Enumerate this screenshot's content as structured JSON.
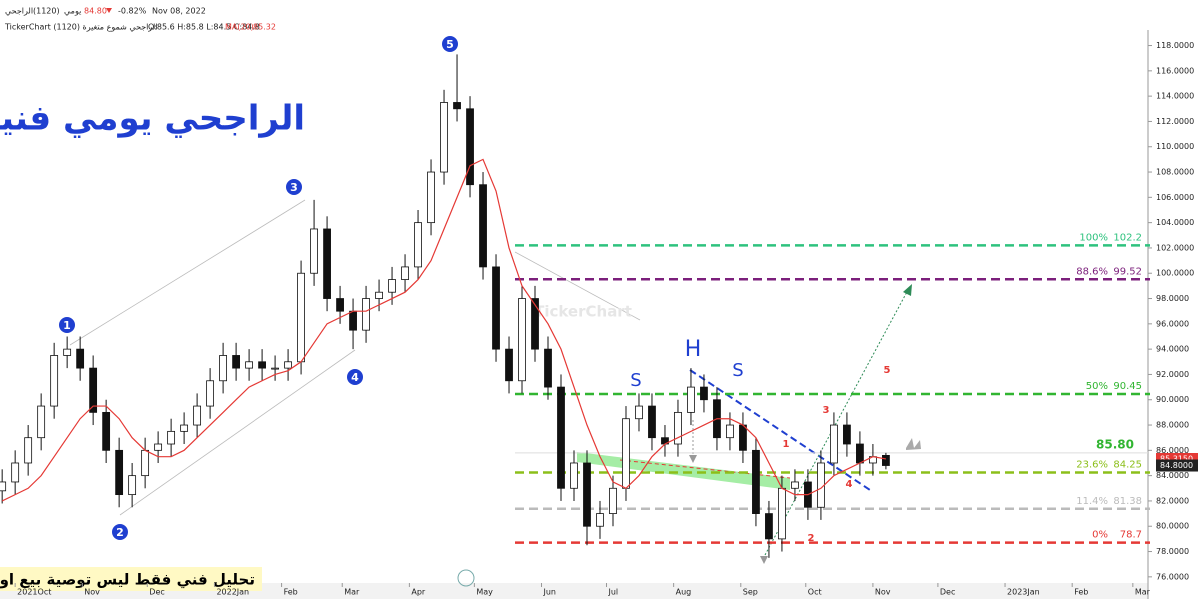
{
  "header": {
    "symbol": "الراجحي",
    "code": "(1120)",
    "period": "يومي",
    "last": "84.80",
    "change": "-0.82%",
    "date": "Nov 08, 2022",
    "source": "TickerChart الراجحي شموع متغيرة (1120)",
    "ohlc": "O:85.6 H:85.8 L:84.5 C:84.8",
    "ma_label": "MA(20)",
    "ma_value": "85.32"
  },
  "chart_data": {
    "type": "candlestick",
    "title": "الراجحي يومي فنياً",
    "disclaimer": "تحليل فني فقط ليس توصية بيع او شراء",
    "watermark": "TickerChart",
    "x": [
      -6,
      0,
      6,
      12,
      18,
      24,
      30,
      36,
      42,
      48,
      54,
      60,
      66,
      72,
      78,
      84,
      90,
      96,
      102,
      108,
      114,
      120,
      126,
      132,
      138,
      144,
      150,
      156,
      162,
      168,
      174,
      180,
      186,
      192,
      198,
      204,
      210,
      216,
      222,
      228,
      234,
      240,
      246,
      252,
      258,
      264,
      270,
      276,
      282,
      288,
      294,
      300,
      306,
      312,
      318,
      324,
      330,
      336,
      342,
      348,
      354,
      360,
      366,
      372,
      378,
      384,
      390,
      396,
      402
    ],
    "open": [
      82.8,
      83.5,
      85,
      87,
      89.5,
      93.5,
      94,
      92.5,
      89,
      86,
      82.5,
      84,
      86,
      86.5,
      87.5,
      88,
      89.5,
      91.5,
      93.5,
      92.5,
      93,
      92.5,
      92.5,
      93,
      100,
      103.5,
      98,
      97,
      95.5,
      98,
      98.5,
      99.5,
      100.5,
      104,
      108,
      113.5,
      113,
      107,
      100.5,
      94,
      91.5,
      98,
      94,
      91,
      83,
      85,
      80,
      81,
      83,
      88.5,
      89.5,
      87,
      86.5,
      89,
      91,
      90,
      87,
      88,
      86,
      81,
      79,
      83,
      83.5,
      81.5,
      85,
      88,
      86.5,
      85,
      85.6
    ],
    "high": [
      84.5,
      86,
      88,
      90.5,
      94.5,
      95,
      95,
      93.5,
      90,
      87,
      85,
      87,
      87.5,
      88.5,
      89,
      90.5,
      92.5,
      94.5,
      94.5,
      94,
      94,
      93.5,
      94,
      101,
      105.8,
      104.5,
      99,
      98,
      99,
      99.5,
      100.5,
      101.5,
      105,
      109,
      114.5,
      117.3,
      114,
      108,
      101.5,
      95,
      99,
      99,
      95,
      92,
      86,
      86,
      82,
      84,
      89.5,
      90.5,
      90.5,
      88,
      90,
      92.5,
      92,
      91,
      89,
      89,
      87,
      82,
      84,
      84.5,
      84.5,
      86,
      89,
      89,
      87.5,
      86.5,
      85.8
    ],
    "low": [
      81.8,
      82.5,
      84,
      86,
      88.5,
      92.5,
      91.5,
      88,
      85,
      81.5,
      81.5,
      83,
      85,
      85.5,
      86.5,
      87,
      88.5,
      90.5,
      91.5,
      91.5,
      91.5,
      91.5,
      91.5,
      92,
      99,
      97,
      96,
      94,
      94.5,
      97,
      97.5,
      98.5,
      99.5,
      103,
      107,
      112,
      106,
      99.5,
      93,
      90.5,
      90.5,
      93,
      90,
      82,
      82,
      78.5,
      79,
      80,
      82,
      87.5,
      86,
      85.5,
      85.5,
      88,
      89,
      86,
      86,
      85,
      80,
      77.5,
      78,
      82,
      80.5,
      80.5,
      84,
      85.5,
      84,
      84,
      84.5
    ],
    "close": [
      83.5,
      85,
      87,
      89.5,
      93.5,
      94,
      92.5,
      89,
      86,
      82.5,
      84,
      86,
      86.5,
      87.5,
      88,
      89.5,
      91.5,
      93.5,
      92.5,
      93,
      92.5,
      92.5,
      93,
      100,
      103.5,
      98,
      97,
      95.5,
      98,
      98.5,
      99.5,
      100.5,
      104,
      108,
      113.5,
      113,
      107,
      100.5,
      94,
      91.5,
      98,
      94,
      91,
      83,
      85,
      80,
      81,
      83,
      88.5,
      89.5,
      87,
      86.5,
      89,
      91,
      90,
      87,
      88,
      86,
      81,
      79,
      83,
      83.5,
      81.5,
      85,
      88,
      86.5,
      85,
      85.5,
      84.8
    ],
    "up_color": "#ffffff",
    "down_color": "#111111",
    "ma": {
      "color": "#e53935",
      "values": [
        82,
        82.5,
        83,
        84,
        85.5,
        87,
        88.5,
        89.5,
        89.5,
        88.5,
        87,
        86,
        85.5,
        85.5,
        86,
        87,
        88,
        89,
        90,
        91,
        91.5,
        92,
        92.3,
        93,
        94.5,
        96,
        96.5,
        97,
        97,
        97.5,
        98,
        98.5,
        99.5,
        101,
        103.5,
        106,
        108.5,
        109,
        106.5,
        102,
        99,
        97.5,
        96,
        94,
        91,
        88,
        85.5,
        83.5,
        83,
        84,
        85.5,
        86.5,
        87,
        87.5,
        88,
        88.5,
        88.5,
        88,
        87,
        85,
        83,
        82.5,
        82.5,
        83,
        84,
        84.5,
        85,
        85.5,
        85.32
      ]
    },
    "xlim": [
      -7,
      523
    ],
    "xticks": [
      {
        "value": 0,
        "label": "2021Oct"
      },
      {
        "value": 31,
        "label": "Nov"
      },
      {
        "value": 61,
        "label": "Dec"
      },
      {
        "value": 92,
        "label": "2022Jan"
      },
      {
        "value": 123,
        "label": "Feb"
      },
      {
        "value": 151,
        "label": "Mar"
      },
      {
        "value": 182,
        "label": "Apr"
      },
      {
        "value": 212,
        "label": "May"
      },
      {
        "value": 243,
        "label": "Jun"
      },
      {
        "value": 273,
        "label": "Jul"
      },
      {
        "value": 304,
        "label": "Aug"
      },
      {
        "value": 335,
        "label": "Sep"
      },
      {
        "value": 365,
        "label": "Oct"
      },
      {
        "value": 396,
        "label": "Nov"
      },
      {
        "value": 426,
        "label": "Dec"
      },
      {
        "value": 457,
        "label": "2023Jan"
      },
      {
        "value": 488,
        "label": "Feb"
      },
      {
        "value": 516,
        "label": "Mar"
      }
    ],
    "ylim": [
      75.75,
      121.6
    ],
    "yticks": [
      {
        "value": 76,
        "label": "76.0000"
      },
      {
        "value": 78,
        "label": "78.0000"
      },
      {
        "value": 80,
        "label": "80.0000"
      },
      {
        "value": 82,
        "label": "82.0000"
      },
      {
        "value": 84,
        "label": "84.0000"
      },
      {
        "value": 86,
        "label": "86.0000"
      },
      {
        "value": 88,
        "label": "88.0000"
      },
      {
        "value": 90,
        "label": "90.0000"
      },
      {
        "value": 92,
        "label": "92.0000"
      },
      {
        "value": 94,
        "label": "94.0000"
      },
      {
        "value": 96,
        "label": "96.0000"
      },
      {
        "value": 98,
        "label": "98.0000"
      },
      {
        "value": 100,
        "label": "100.0000"
      },
      {
        "value": 102,
        "label": "102.0000"
      },
      {
        "value": 104,
        "label": "104.0000"
      },
      {
        "value": 106,
        "label": "106.0000"
      },
      {
        "value": 108,
        "label": "108.0000"
      },
      {
        "value": 110,
        "label": "110.0000"
      },
      {
        "value": 112,
        "label": "112.0000"
      },
      {
        "value": 114,
        "label": "114.0000"
      },
      {
        "value": 116,
        "label": "116.0000"
      },
      {
        "value": 118,
        "label": "118.0000"
      }
    ],
    "fib_levels": [
      {
        "label": "100%",
        "value": 102.2,
        "color": "#2ec27e"
      },
      {
        "label": "88.6%",
        "value": 99.52,
        "color": "#7b1f7b"
      },
      {
        "label": "50%",
        "value": 90.45,
        "color": "#31b531"
      },
      {
        "label": "23.6%",
        "value": 84.25,
        "color": "#8cbf1a"
      },
      {
        "label": "11.4%",
        "value": 81.38,
        "color": "#bbbbbb"
      },
      {
        "label": "0%",
        "value": 78.7,
        "color": "#e53935"
      }
    ],
    "level_marker": {
      "value": 85.8,
      "label": "85.80",
      "color": "#31b531"
    },
    "price_tags": [
      {
        "value": 85.315,
        "label": "85.3150",
        "color": "#e53935"
      },
      {
        "value": 84.8,
        "label": "84.8000",
        "color": "#222222"
      }
    ],
    "wave_labels": [
      "1",
      "2",
      "3",
      "4",
      "5"
    ],
    "pattern_labels": [
      "S",
      "H",
      "S"
    ],
    "sub_wave_labels": [
      "1",
      "2",
      "3",
      "4",
      "5"
    ]
  }
}
